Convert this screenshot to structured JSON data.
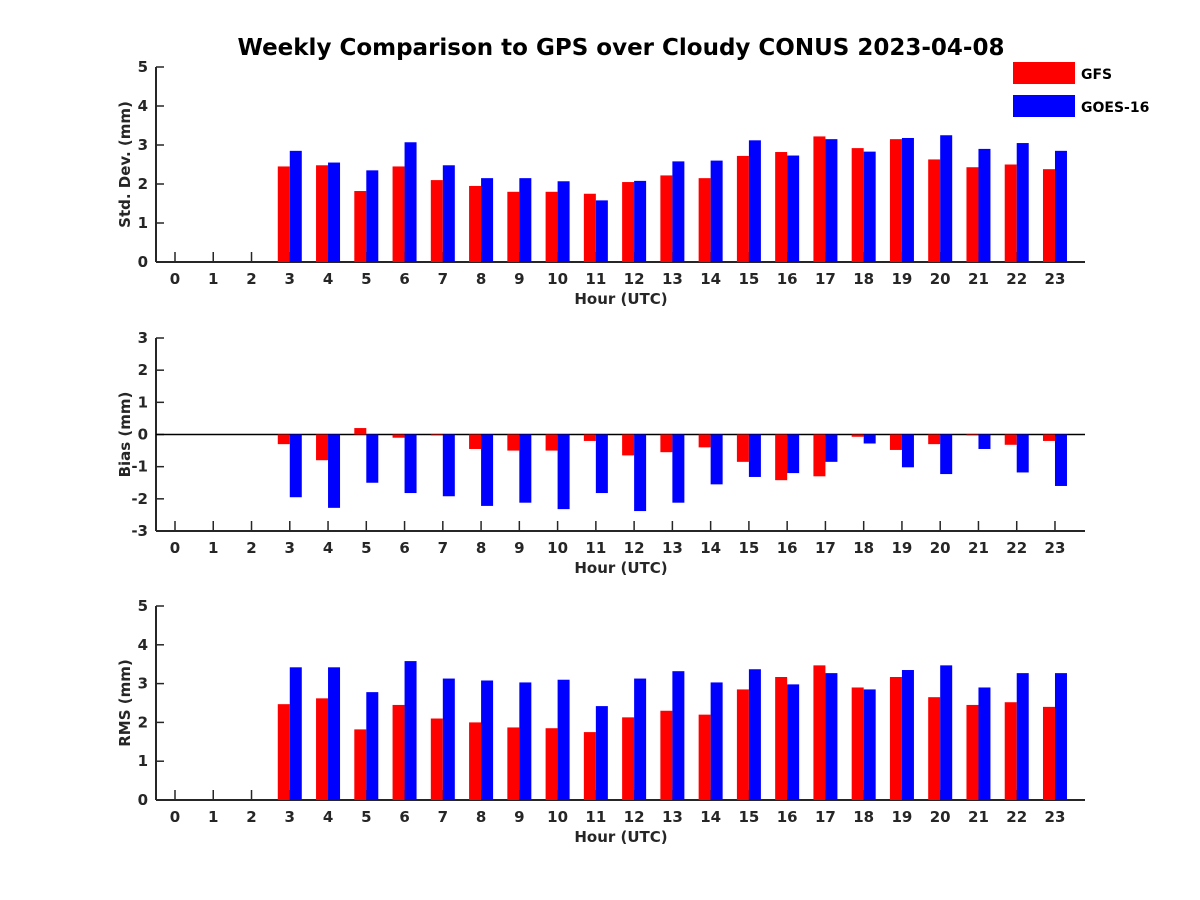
{
  "title": "Weekly Comparison to GPS over Cloudy CONUS 2023-04-08",
  "legend": [
    {
      "name": "GFS",
      "color": "#ff0000"
    },
    {
      "name": "GOES-16",
      "color": "#0000ff"
    }
  ],
  "chart_data": [
    {
      "type": "bar",
      "ylabel": "Std. Dev. (mm)",
      "xlabel": "Hour (UTC)",
      "ylim": [
        0,
        5
      ],
      "yticks": [
        0,
        1,
        2,
        3,
        4,
        5
      ],
      "categories": [
        "0",
        "1",
        "2",
        "3",
        "4",
        "5",
        "6",
        "7",
        "8",
        "9",
        "10",
        "11",
        "12",
        "13",
        "14",
        "15",
        "16",
        "17",
        "18",
        "19",
        "20",
        "21",
        "22",
        "23"
      ],
      "series": [
        {
          "name": "GFS",
          "color": "#ff0000",
          "values": [
            null,
            null,
            null,
            2.45,
            2.48,
            1.82,
            2.45,
            2.1,
            1.95,
            1.8,
            1.8,
            1.75,
            2.05,
            2.22,
            2.15,
            2.72,
            2.82,
            3.22,
            2.92,
            3.15,
            2.63,
            2.43,
            2.5,
            2.38
          ]
        },
        {
          "name": "GOES-16",
          "color": "#0000ff",
          "values": [
            null,
            null,
            null,
            2.85,
            2.55,
            2.35,
            3.07,
            2.48,
            2.15,
            2.15,
            2.07,
            1.58,
            2.08,
            2.58,
            2.6,
            3.12,
            2.73,
            3.15,
            2.83,
            3.18,
            3.25,
            2.9,
            3.05,
            2.85
          ]
        }
      ]
    },
    {
      "type": "bar",
      "ylabel": "Bias (mm)",
      "xlabel": "Hour (UTC)",
      "ylim": [
        -3,
        3
      ],
      "yticks": [
        -3,
        -2,
        -1,
        0,
        1,
        2,
        3
      ],
      "categories": [
        "0",
        "1",
        "2",
        "3",
        "4",
        "5",
        "6",
        "7",
        "8",
        "9",
        "10",
        "11",
        "12",
        "13",
        "14",
        "15",
        "16",
        "17",
        "18",
        "19",
        "20",
        "21",
        "22",
        "23"
      ],
      "series": [
        {
          "name": "GFS",
          "color": "#ff0000",
          "values": [
            null,
            null,
            null,
            -0.3,
            -0.8,
            0.2,
            -0.1,
            -0.03,
            -0.45,
            -0.5,
            -0.5,
            -0.2,
            -0.65,
            -0.55,
            -0.4,
            -0.85,
            -1.42,
            -1.3,
            -0.07,
            -0.48,
            -0.3,
            -0.03,
            -0.32,
            -0.2
          ]
        },
        {
          "name": "GOES-16",
          "color": "#0000ff",
          "values": [
            null,
            null,
            null,
            -1.95,
            -2.28,
            -1.5,
            -1.82,
            -1.92,
            -2.22,
            -2.12,
            -2.32,
            -1.82,
            -2.38,
            -2.12,
            -1.55,
            -1.32,
            -1.2,
            -0.85,
            -0.28,
            -1.02,
            -1.23,
            -0.45,
            -1.18,
            -1.6
          ]
        }
      ]
    },
    {
      "type": "bar",
      "ylabel": "RMS (mm)",
      "xlabel": "Hour (UTC)",
      "ylim": [
        0,
        5
      ],
      "yticks": [
        0,
        1,
        2,
        3,
        4,
        5
      ],
      "categories": [
        "0",
        "1",
        "2",
        "3",
        "4",
        "5",
        "6",
        "7",
        "8",
        "9",
        "10",
        "11",
        "12",
        "13",
        "14",
        "15",
        "16",
        "17",
        "18",
        "19",
        "20",
        "21",
        "22",
        "23"
      ],
      "series": [
        {
          "name": "GFS",
          "color": "#ff0000",
          "values": [
            null,
            null,
            null,
            2.47,
            2.62,
            1.82,
            2.45,
            2.1,
            2.0,
            1.87,
            1.85,
            1.75,
            2.13,
            2.3,
            2.2,
            2.85,
            3.17,
            3.47,
            2.9,
            3.17,
            2.65,
            2.45,
            2.52,
            2.4
          ]
        },
        {
          "name": "GOES-16",
          "color": "#0000ff",
          "values": [
            null,
            null,
            null,
            3.42,
            3.42,
            2.78,
            3.58,
            3.13,
            3.08,
            3.03,
            3.1,
            2.42,
            3.13,
            3.32,
            3.03,
            3.37,
            2.98,
            3.27,
            2.85,
            3.35,
            3.47,
            2.9,
            3.27,
            3.27
          ]
        }
      ]
    }
  ]
}
